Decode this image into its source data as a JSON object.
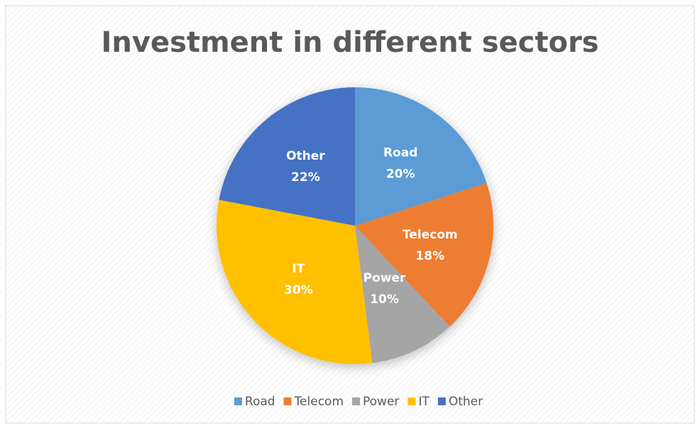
{
  "chart_data": {
    "type": "pie",
    "title": "Investment in different sectors",
    "categories": [
      "Road",
      "Telecom",
      "Power",
      "IT",
      "Other"
    ],
    "values": [
      20,
      18,
      10,
      30,
      22
    ],
    "value_labels": [
      "20%",
      "18%",
      "10%",
      "30%",
      "22%"
    ],
    "colors": [
      "#5b9bd5",
      "#ed7d31",
      "#a5a5a5",
      "#ffc000",
      "#4472c4"
    ],
    "legend": "bottom"
  }
}
